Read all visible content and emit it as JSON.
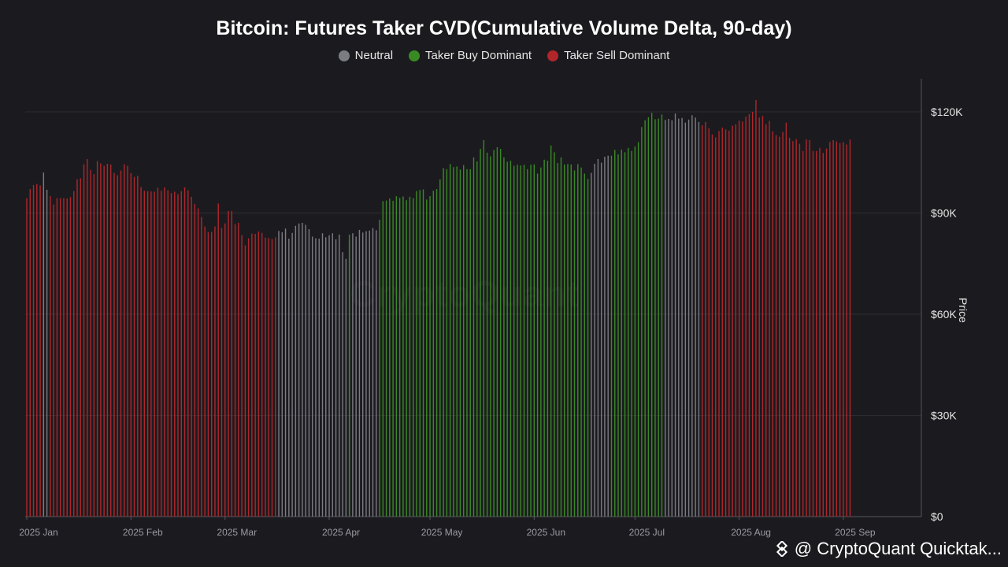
{
  "chart_data": {
    "type": "bar",
    "title": "Bitcoin: Futures Taker CVD(Cumulative Volume Delta, 90-day)",
    "ylabel": "Price",
    "ylim": [
      0,
      130000
    ],
    "yticks": [
      0,
      30000,
      60000,
      90000,
      120000
    ],
    "ytick_labels": [
      "$0",
      "$30K",
      "$60K",
      "$90K",
      "$120K"
    ],
    "x_start": "2025-01-01",
    "xtick_labels": [
      "2025 Jan",
      "2025 Feb",
      "2025 Mar",
      "2025 Apr",
      "2025 May",
      "2025 Jun",
      "2025 Jul",
      "2025 Aug",
      "2025 Sep"
    ],
    "xtick_days": [
      0,
      31,
      59,
      90,
      120,
      151,
      181,
      212,
      243
    ],
    "grid": true,
    "legend_position": "top-center",
    "legend": [
      {
        "name": "Neutral",
        "color": "#7b7b82"
      },
      {
        "name": "Taker Buy Dominant",
        "color": "#3a8a24"
      },
      {
        "name": "Taker Sell Dominant",
        "color": "#b0262a"
      }
    ],
    "series": [
      {
        "name": "Taker Sell Dominant",
        "color": "#b0262a",
        "segments": [
          {
            "start": 0,
            "values": [
              94400,
              97100,
              98300,
              98600,
              98200,
              95800
            ]
          }
        ]
      },
      {
        "name": "Neutral",
        "color": "#7b7b82",
        "segments": [
          {
            "start": 5,
            "values": [
              102000,
              96900
            ]
          }
        ]
      },
      {
        "name": "Taker Sell Dominant",
        "color": "#b0262a",
        "segments": [
          {
            "start": 7,
            "values": [
              95000,
              92500,
              94400,
              94400,
              94400,
              94300,
              94700,
              96500,
              100000,
              100300,
              104400,
              106000,
              102800,
              101500,
              105400,
              104700,
              104000,
              104600,
              104400,
              101900,
              101200,
              102600,
              104500,
              104000,
              101800,
              100700,
              101000,
              97700,
              96600,
              96500,
              96400,
              96300,
              97500,
              96600,
              97600,
              96700,
              95900,
              96300,
              95600,
              96500,
              97600,
              96700,
              94800,
              92700,
              91400,
              88800,
              86000,
              84300,
              84400,
              86000,
              92800,
              85500,
              86900,
              90600,
              90600,
              86700,
              87100,
              83400,
              80400,
              82500,
              83900,
              83800,
              84500,
              84100,
              82700,
              82600,
              82300,
              82800
            ]
          }
        ]
      },
      {
        "name": "Neutral",
        "color": "#7b7b82",
        "segments": [
          {
            "start": 75,
            "values": [
              84700,
              84300,
              85400,
              82400,
              84100,
              86200,
              86900,
              87100,
              86500,
              85200,
              83000,
              82500,
              82400,
              84000,
              82800,
              83400,
              84000,
              82200,
              83600,
              78400,
              76400,
              81800,
              84000,
              83000,
              85000,
              84200,
              84600,
              84800,
              85500,
              84900
            ]
          }
        ]
      },
      {
        "name": "Taker Buy Dominant",
        "color": "#3a8a24",
        "segments": [
          {
            "start": 96,
            "values": [
              83600
            ]
          },
          {
            "start": 105,
            "values": [
              88000,
              93500,
              93700,
              94300,
              93600,
              95000,
              94500,
              94900,
              93800,
              94800,
              94400,
              96500,
              96800,
              97000,
              94000,
              95000,
              96600,
              97100,
              100000,
              103300,
              103000,
              104500,
              103600,
              103800,
              102900,
              104200,
              103000,
              103000,
              106500,
              105300,
              109000,
              111600,
              107900,
              106800,
              108700,
              109500,
              109000,
              106500,
              105200,
              105500,
              104000,
              104300,
              104100,
              104300,
              103000,
              104300,
              104400,
              101700,
              103500,
              105800,
              105500,
              110000,
              108000,
              104800,
              106500,
              104400,
              104500,
              104400,
              102600,
              104500,
              103500,
              101700,
              100100
            ]
          }
        ]
      },
      {
        "name": "Neutral",
        "color": "#7b7b82",
        "segments": [
          {
            "start": 168,
            "values": [
              101900,
              104600,
              106000,
              104900,
              106700,
              107000
            ]
          }
        ]
      },
      {
        "name": "Taker Buy Dominant",
        "color": "#3a8a24",
        "segments": [
          {
            "start": 174,
            "values": [
              107000,
              108700,
              107400,
              108800,
              108000,
              109300,
              108400,
              109700,
              111000,
              115500,
              117500,
              118400,
              119700,
              117800,
              118000,
              119200
            ]
          }
        ]
      },
      {
        "name": "Neutral",
        "color": "#7b7b82",
        "segments": [
          {
            "start": 190,
            "values": [
              117600,
              117900,
              117500,
              119500,
              118000,
              118200,
              116800,
              117700,
              119000,
              118300,
              117000
            ]
          }
        ]
      },
      {
        "name": "Taker Sell Dominant",
        "color": "#b0262a",
        "segments": [
          {
            "start": 201,
            "values": [
              116000,
              117000,
              115100,
              113300,
              112400,
              114300,
              115300,
              114800,
              114400,
              115900,
              116300,
              117400,
              117100,
              118600,
              119300,
              120000,
              123500,
              118300,
              118800,
              116300,
              117300,
              114200,
              113100,
              112600,
              114000,
              116800,
              112300,
              111300,
              111900,
              110500,
              108400,
              111800,
              111600,
              108400,
              108400,
              109300,
              107800,
              109100,
              111100,
              111600,
              111200,
              110700,
              111000,
              110300,
              111800
            ]
          }
        ]
      }
    ]
  },
  "watermark": "CryptoQuant",
  "footer": {
    "text": "@ CryptoQuant Quicktak...",
    "icon": "cryptoquant-logo-icon"
  }
}
